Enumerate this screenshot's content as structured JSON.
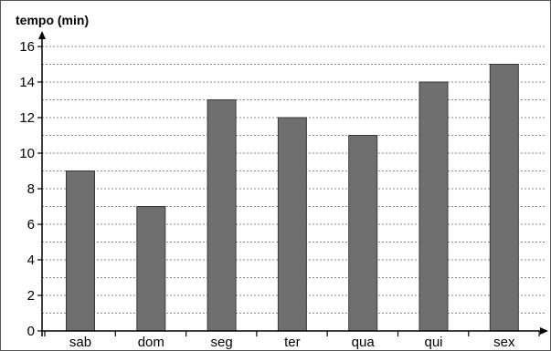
{
  "chart_data": {
    "type": "bar",
    "ylabel": "tempo (min)",
    "xlabel": "",
    "categories": [
      "sab",
      "dom",
      "seg",
      "ter",
      "qua",
      "qui",
      "sex"
    ],
    "values": [
      9,
      7,
      13,
      12,
      11,
      14,
      15
    ],
    "ylim": [
      0,
      16
    ],
    "yticks": [
      0,
      2,
      4,
      6,
      8,
      10,
      12,
      14,
      16
    ],
    "grid": "horizontal dotted, every 1 unit",
    "bar_color": "#6f6f6f"
  }
}
